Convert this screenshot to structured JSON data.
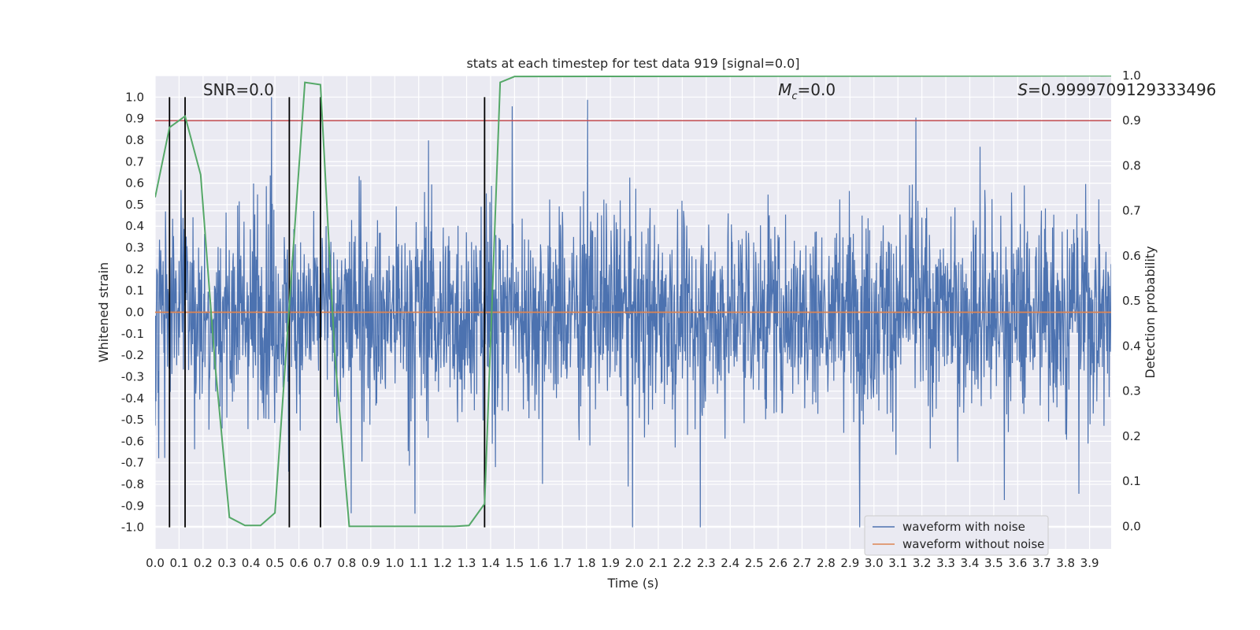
{
  "chart_data": {
    "type": "line",
    "title": "stats at each timestep for test data 919 [signal=0.0]",
    "xlabel": "Time (s)",
    "ylabel": "Whitened strain",
    "y2label": "Detection probability",
    "xlim": [
      0.0,
      3.99
    ],
    "ylim": [
      -1.1,
      1.1
    ],
    "y2lim": [
      -0.05,
      1.0
    ],
    "xticks": [
      "0.0",
      "0.1",
      "0.2",
      "0.3",
      "0.4",
      "0.5",
      "0.6",
      "0.7",
      "0.8",
      "0.9",
      "1.0",
      "1.1",
      "1.2",
      "1.3",
      "1.4",
      "1.5",
      "1.6",
      "1.7",
      "1.8",
      "1.9",
      "2.0",
      "2.1",
      "2.2",
      "2.3",
      "2.4",
      "2.5",
      "2.6",
      "2.7",
      "2.8",
      "2.9",
      "3.0",
      "3.1",
      "3.2",
      "3.3",
      "3.4",
      "3.5",
      "3.6",
      "3.7",
      "3.8",
      "3.9"
    ],
    "yticks": [
      "1.0",
      "0.9",
      "0.8",
      "0.7",
      "0.6",
      "0.5",
      "0.4",
      "0.3",
      "0.2",
      "0.1",
      "0.0",
      "-0.1",
      "-0.2",
      "-0.3",
      "-0.4",
      "-0.5",
      "-0.6",
      "-0.7",
      "-0.8",
      "-0.9",
      "-1.0"
    ],
    "y2ticks": [
      "1.0",
      "0.9",
      "0.8",
      "0.7",
      "0.6",
      "0.5",
      "0.4",
      "0.3",
      "0.2",
      "0.1",
      "0.0"
    ],
    "annotations": {
      "snr": "SNR=0.0",
      "mc_symbol": "M",
      "mc_sub": "c",
      "mc_value": "=0.0",
      "s_symbol": "S",
      "s_value": "=0.9999709129333496"
    },
    "legend": {
      "placement": "lower-right",
      "entries": [
        "waveform with noise",
        "waveform without noise"
      ]
    },
    "series": [
      {
        "name": "waveform with noise",
        "color": "#4c72b0",
        "kind": "noise",
        "amplitude_range": [
          -1.0,
          1.0
        ]
      },
      {
        "name": "waveform without noise",
        "color": "#dd8452",
        "value": 0.0
      },
      {
        "name": "detection probability",
        "color": "#55a868",
        "axis": "y2",
        "x": [
          0.0,
          0.06,
          0.125,
          0.19,
          0.25,
          0.31,
          0.375,
          0.44,
          0.5,
          0.56,
          0.625,
          0.69,
          0.75,
          0.81,
          0.875,
          1.0,
          1.25,
          1.31,
          1.375,
          1.44,
          1.5,
          3.99
        ],
        "y": [
          0.73,
          0.885,
          0.91,
          0.78,
          0.36,
          0.02,
          0.002,
          0.002,
          0.03,
          0.49,
          0.985,
          0.98,
          0.38,
          0.0,
          0.0,
          0.0,
          0.0,
          0.002,
          0.05,
          0.985,
          0.998,
          0.9997
        ]
      },
      {
        "name": "threshold",
        "color": "#c44e52",
        "axis": "y2",
        "value": 0.9
      }
    ],
    "vertical_markers": [
      0.06,
      0.125,
      0.56,
      0.69,
      1.375
    ]
  }
}
